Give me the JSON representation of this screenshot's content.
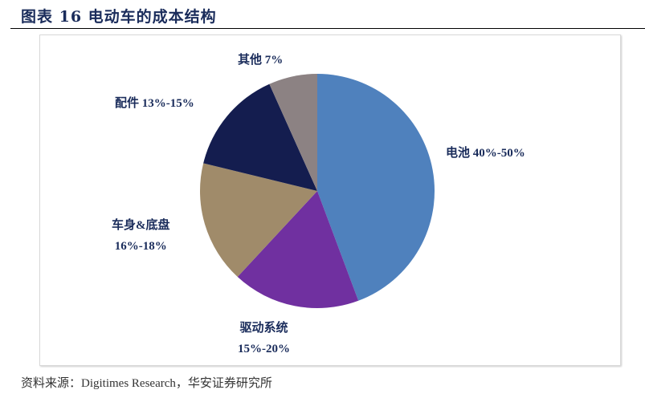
{
  "title": "图表 16  电动车的成本结构",
  "source": "资料来源：Digitimes Research，华安证券研究所",
  "chart_data": {
    "type": "pie",
    "title": "",
    "start": "top",
    "direction": "clockwise",
    "slices": [
      {
        "label": "电池 40%-50%",
        "lines": [
          "电池 40%-50%"
        ],
        "value": 44.3,
        "color": "#4F81BD"
      },
      {
        "label": "驱动系统 15%-20%",
        "lines": [
          "驱动系统",
          "15%-20%"
        ],
        "value": 17.6,
        "color": "#7030A0"
      },
      {
        "label": "车身&底盘 16%-18%",
        "lines": [
          "车身&底盘",
          "16%-18%"
        ],
        "value": 16.9,
        "color": "#A08B6A"
      },
      {
        "label": "配件 13%-15%",
        "lines": [
          "配件 13%-15%"
        ],
        "value": 14.5,
        "color": "#141D4F"
      },
      {
        "label": "其他 7%",
        "lines": [
          "其他 7%"
        ],
        "value": 6.7,
        "color": "#8C8283"
      }
    ]
  }
}
